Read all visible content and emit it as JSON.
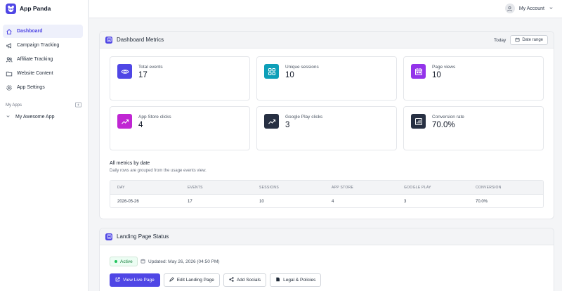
{
  "app": {
    "name": "App Panda"
  },
  "sidebar": {
    "items": [
      {
        "label": "Dashboard",
        "icon": "home-icon",
        "active": true
      },
      {
        "label": "Campaign Tracking",
        "icon": "megaphone-icon"
      },
      {
        "label": "Affiliate Tracking",
        "icon": "users-icon"
      },
      {
        "label": "Website Content",
        "icon": "folder-icon"
      },
      {
        "label": "App Settings",
        "icon": "gear-icon"
      }
    ],
    "my_apps_label": "My Apps",
    "apps": [
      {
        "label": "My Awesome App"
      }
    ]
  },
  "header": {
    "account_label": "My Account"
  },
  "metrics": {
    "title": "Dashboard Metrics",
    "period_label": "Today",
    "date_range_label": "Date range",
    "cards": [
      {
        "label": "Total events",
        "value": "17",
        "icon": "eye-icon",
        "color": "#4f46e5"
      },
      {
        "label": "Unique sessions",
        "value": "10",
        "icon": "grid-icon",
        "color": "#0e9fb8"
      },
      {
        "label": "Page views",
        "value": "10",
        "icon": "calendar-icon",
        "color": "#9333ea"
      },
      {
        "label": "App Store clicks",
        "value": "4",
        "icon": "trending-up-icon",
        "color": "#c026d3"
      },
      {
        "label": "Google Play clicks",
        "value": "3",
        "icon": "trending-up-icon",
        "color": "#273043"
      },
      {
        "label": "Conversion rate",
        "value": "70.0%",
        "icon": "bar-chart-icon",
        "color": "#273043"
      }
    ],
    "table": {
      "title": "All metrics by date",
      "subtitle": "Daily rows are grouped from the usage events view.",
      "columns": [
        "DAY",
        "EVENTS",
        "SESSIONS",
        "APP STORE",
        "GOOGLE PLAY",
        "CONVERSION"
      ],
      "rows": [
        [
          "2026-05-26",
          "17",
          "10",
          "4",
          "3",
          "70.0%"
        ]
      ]
    }
  },
  "landing": {
    "title": "Landing Page Status",
    "status_label": "Active",
    "updated_text": "Updated: May 26, 2026 (04:50 PM)",
    "buttons": {
      "view_live": "View Live Page",
      "edit": "Edit Landing Page",
      "socials": "Add Socials",
      "legal": "Legal & Policies"
    }
  }
}
